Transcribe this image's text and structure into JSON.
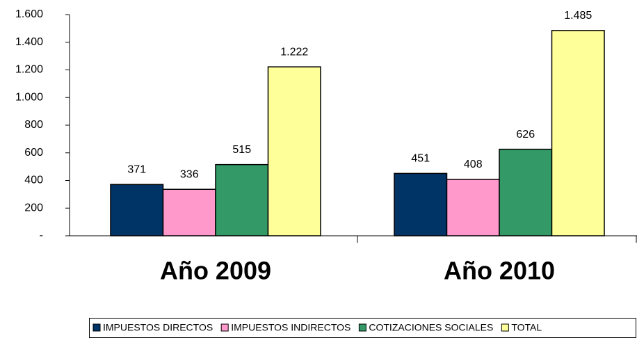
{
  "chart_data": {
    "type": "bar",
    "categories": [
      "Año 2009",
      "Año 2010"
    ],
    "series": [
      {
        "name": "IMPUESTOS DIRECTOS",
        "color": "#003366",
        "values": [
          371,
          451
        ]
      },
      {
        "name": "IMPUESTOS INDIRECTOS",
        "color": "#ff99cc",
        "values": [
          336,
          408
        ]
      },
      {
        "name": "COTIZACIONES SOCIALES",
        "color": "#339966",
        "values": [
          515,
          626
        ]
      },
      {
        "name": "TOTAL",
        "color": "#ffff99",
        "values": [
          1222,
          1485
        ],
        "value_labels": [
          "1.222",
          "1.485"
        ]
      }
    ],
    "ylim": [
      0,
      1600
    ],
    "yticks": [
      {
        "value": 0,
        "label": "-"
      },
      200,
      400,
      600,
      800,
      {
        "value": 1000,
        "label": "1.000"
      },
      {
        "value": 1200,
        "label": "1.200"
      },
      {
        "value": 1400,
        "label": "1.400"
      },
      {
        "value": 1600,
        "label": "1.600"
      }
    ],
    "grid": false,
    "legend": "bottom"
  }
}
